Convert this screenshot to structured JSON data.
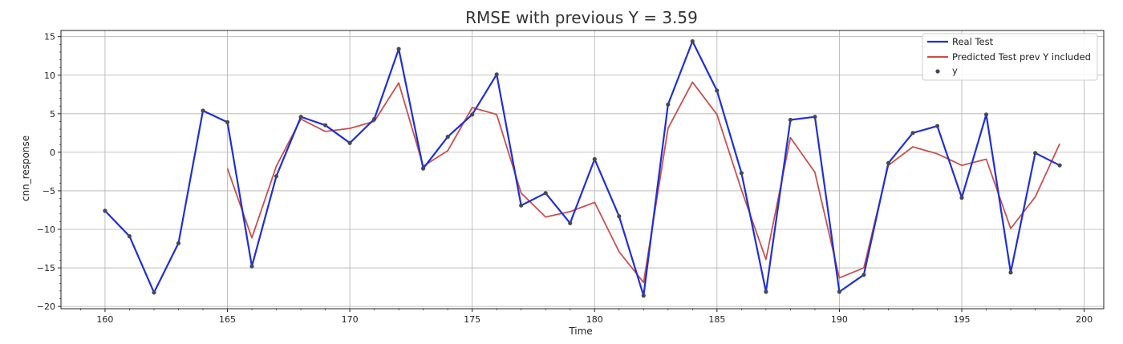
{
  "chart_data": {
    "type": "line",
    "title": "RMSE with previous Y = 3.59",
    "xlabel": "Time",
    "ylabel": "cnn_response",
    "xlim": [
      158.2,
      200.8
    ],
    "ylim": [
      -20.3,
      15.8
    ],
    "xticks": [
      160,
      165,
      170,
      175,
      180,
      185,
      190,
      195,
      200
    ],
    "yticks": [
      15,
      10,
      5,
      0,
      -5,
      -10,
      -15,
      -20
    ],
    "ytick_labels": [
      "15",
      "10",
      "5",
      "0",
      "−5",
      "−10",
      "−15",
      "−20"
    ],
    "grid": true,
    "legend_position": "top-right",
    "colors": {
      "real": "#1f2fd6",
      "predicted": "#c9504e",
      "scatter": "#444a55"
    },
    "series": [
      {
        "name": "Real Test",
        "kind": "line",
        "x": [
          160,
          161,
          162,
          163,
          164,
          165,
          166,
          167,
          168,
          169,
          170,
          171,
          172,
          173,
          174,
          175,
          176,
          177,
          178,
          179,
          180,
          181,
          182,
          183,
          184,
          185,
          186,
          187,
          188,
          189,
          190,
          191,
          192,
          193,
          194,
          195,
          196,
          197,
          198,
          199
        ],
        "y": [
          -7.6,
          -10.9,
          -18.2,
          -11.8,
          5.4,
          3.9,
          -14.8,
          -3.1,
          4.6,
          3.5,
          1.2,
          4.3,
          13.4,
          -2.1,
          2.0,
          4.9,
          10.1,
          -6.9,
          -5.3,
          -9.2,
          -0.9,
          -8.3,
          -18.6,
          6.2,
          14.4,
          8.0,
          -2.7,
          -18.1,
          4.2,
          4.6,
          -18.1,
          -15.9,
          -1.4,
          2.5,
          3.4,
          -5.9,
          4.9,
          -15.6,
          -0.1,
          -1.7
        ]
      },
      {
        "name": "Predicted Test prev Y included",
        "kind": "line",
        "x": [
          165,
          166,
          167,
          168,
          169,
          170,
          171,
          172,
          173,
          174,
          175,
          176,
          177,
          178,
          179,
          180,
          181,
          182,
          183,
          184,
          185,
          186,
          187,
          188,
          189,
          190,
          191,
          192,
          193,
          194,
          195,
          196,
          197,
          198,
          199
        ],
        "y": [
          -2.1,
          -11.1,
          -1.8,
          4.3,
          2.7,
          3.1,
          4.0,
          9.0,
          -1.8,
          0.2,
          5.8,
          4.9,
          -5.3,
          -8.4,
          -7.7,
          -6.5,
          -12.9,
          -16.9,
          3.1,
          9.1,
          4.9,
          -4.9,
          -13.9,
          1.9,
          -2.6,
          -16.3,
          -15.0,
          -1.7,
          0.7,
          -0.2,
          -1.7,
          -0.9,
          -9.9,
          -5.8,
          1.1
        ]
      },
      {
        "name": "y",
        "kind": "scatter",
        "x": [
          160,
          161,
          162,
          163,
          164,
          165,
          166,
          167,
          168,
          169,
          170,
          171,
          172,
          173,
          174,
          175,
          176,
          177,
          178,
          179,
          180,
          181,
          182,
          183,
          184,
          185,
          186,
          187,
          188,
          189,
          190,
          191,
          192,
          193,
          194,
          195,
          196,
          197,
          198,
          199
        ],
        "y": [
          -7.6,
          -10.9,
          -18.2,
          -11.8,
          5.4,
          3.9,
          -14.8,
          -3.1,
          4.6,
          3.5,
          1.2,
          4.3,
          13.4,
          -2.1,
          2.0,
          4.9,
          10.1,
          -6.9,
          -5.3,
          -9.2,
          -0.9,
          -8.3,
          -18.6,
          6.2,
          14.4,
          8.0,
          -2.7,
          -18.1,
          4.2,
          4.6,
          -18.1,
          -15.9,
          -1.4,
          2.5,
          3.4,
          -5.9,
          4.9,
          -15.6,
          -0.1,
          -1.7
        ]
      }
    ]
  }
}
